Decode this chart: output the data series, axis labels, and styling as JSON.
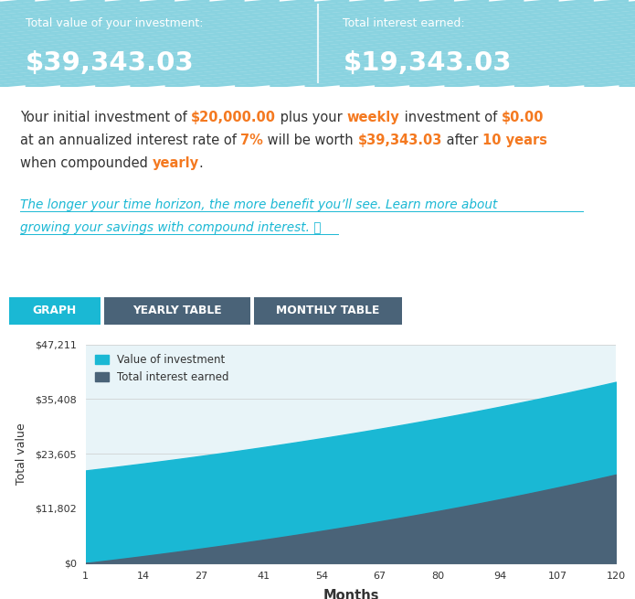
{
  "header_bg": "#1ab8d4",
  "header_stripe_color": "#17a8c2",
  "total_value_label": "Total value of your investment:",
  "total_value_amount": "$39,343.03",
  "total_interest_label": "Total interest earned:",
  "total_interest_amount": "$19,343.03",
  "body_bg": "#ffffff",
  "text_color": "#333333",
  "orange_color": "#f47920",
  "link_color": "#1ab8d4",
  "tab_graph_label": "GRAPH",
  "tab_yearly_label": "YEARLY TABLE",
  "tab_monthly_label": "MONTHLY TABLE",
  "tab_graph_bg": "#1ab8d4",
  "tab_other_bg": "#4a6378",
  "tab_text_color": "#ffffff",
  "chart_bg": "#e8f4f8",
  "chart_area_color": "#1ab8d4",
  "chart_interest_color": "#4a6378",
  "yticks": [
    "$0",
    "$11,802",
    "$23,605",
    "$35,408",
    "$47,211"
  ],
  "ytick_vals": [
    0,
    11802,
    23605,
    35408,
    47211
  ],
  "xticks": [
    1,
    14,
    27,
    41,
    54,
    67,
    80,
    94,
    107,
    120
  ],
  "xlabel": "Months",
  "ylabel": "Total value",
  "legend_investment": "Value of investment",
  "legend_interest": "Total interest earned",
  "initial_value": 20000,
  "annual_rate": 0.07,
  "months": 120
}
